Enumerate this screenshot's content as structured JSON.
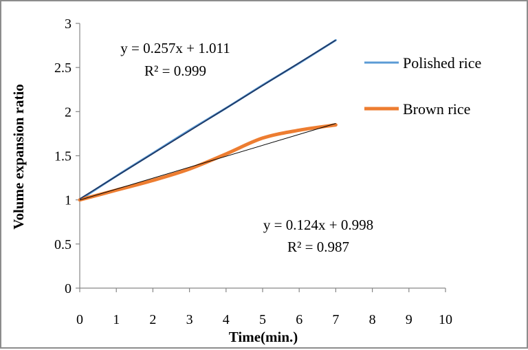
{
  "chart_data": {
    "type": "line",
    "title": "",
    "xlabel": "Time(min.)",
    "ylabel": "Volume expansion ratio",
    "xlim": [
      0,
      10
    ],
    "ylim": [
      0,
      3
    ],
    "x_ticks": [
      "0",
      "1",
      "2",
      "3",
      "4",
      "5",
      "6",
      "7",
      "8",
      "9",
      "10"
    ],
    "y_ticks": [
      "0",
      "0.5",
      "1",
      "1.5",
      "2",
      "2.5",
      "3"
    ],
    "grid": false,
    "legend_position": "right",
    "series": [
      {
        "name": "Polished rice",
        "color": "#5b9bd5",
        "x": [
          0,
          1,
          2,
          3,
          4,
          5,
          6,
          7
        ],
        "y": [
          1.0,
          1.27,
          1.53,
          1.79,
          2.04,
          2.3,
          2.55,
          2.81
        ]
      },
      {
        "name": "Brown rice",
        "color": "#ed7d31",
        "x": [
          0,
          1,
          2,
          3,
          4,
          5,
          6,
          7
        ],
        "y": [
          1.0,
          1.11,
          1.22,
          1.35,
          1.52,
          1.7,
          1.79,
          1.85
        ]
      }
    ],
    "trendlines": [
      {
        "color": "#1f3864",
        "slope": 0.257,
        "intercept": 1.011,
        "x_range": [
          0,
          7
        ]
      },
      {
        "color": "#000000",
        "slope": 0.124,
        "intercept": 0.998,
        "x_range": [
          0,
          7
        ]
      }
    ],
    "annotations": [
      {
        "line1": "y = 0.257x + 1.011",
        "line2": "R² = 0.999"
      },
      {
        "line1": "y = 0.124x + 0.998",
        "line2": "R² = 0.987"
      }
    ]
  }
}
